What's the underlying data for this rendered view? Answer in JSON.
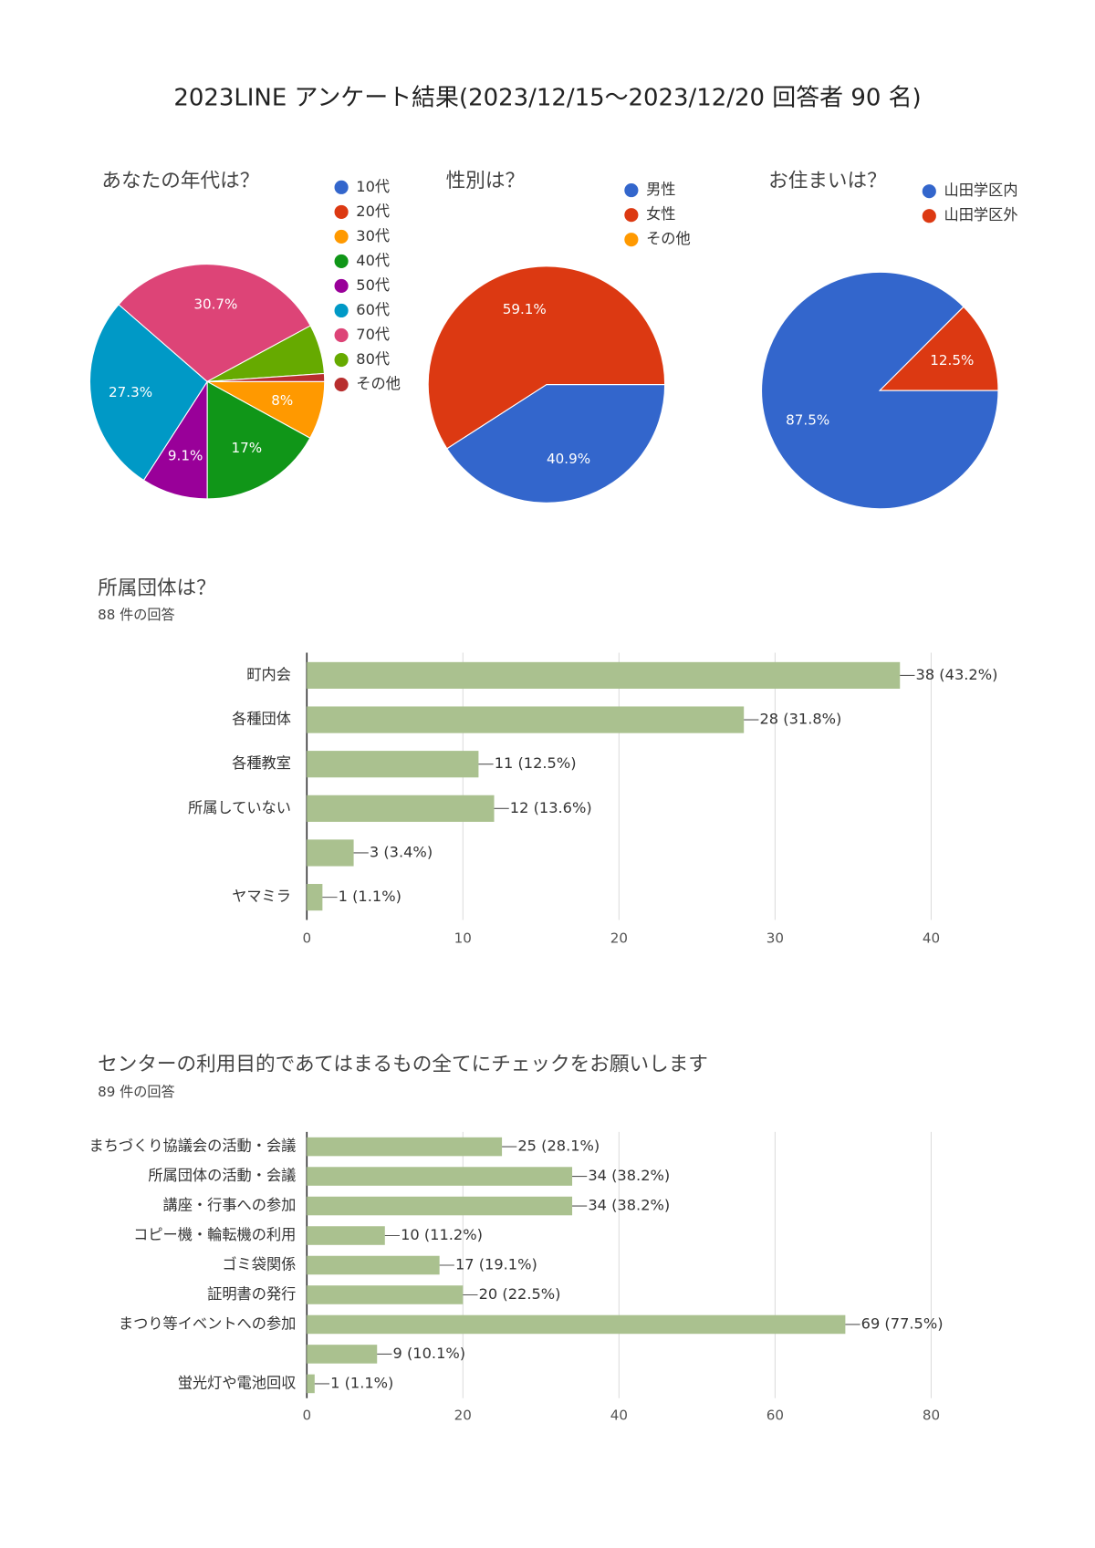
{
  "title": "2023LINE アンケート結果(2023/12/15～2023/12/20 回答者 90 名)",
  "chart_data": [
    {
      "type": "pie",
      "title": "あなたの年代は？",
      "categories": [
        "10代",
        "20代",
        "30代",
        "40代",
        "50代",
        "60代",
        "70代",
        "80代",
        "その他"
      ],
      "values": [
        0,
        0,
        8,
        17,
        9.1,
        27.3,
        30.7,
        6.8,
        1.1
      ],
      "value_labels": [
        null,
        null,
        "8%",
        "17%",
        "9.1%",
        "27.3%",
        "30.7%",
        null,
        null
      ],
      "colors": [
        "#3366cc",
        "#dc3912",
        "#ff9900",
        "#109618",
        "#990099",
        "#0099c6",
        "#dd4477",
        "#66aa00",
        "#b82e2e"
      ]
    },
    {
      "type": "pie",
      "title": "性別は？",
      "categories": [
        "男性",
        "女性",
        "その他"
      ],
      "values": [
        40.9,
        59.1,
        0
      ],
      "value_labels": [
        "40.9%",
        "59.1%",
        null
      ],
      "colors": [
        "#3366cc",
        "#dc3912",
        "#ff9900"
      ]
    },
    {
      "type": "pie",
      "title": "お住まいは？",
      "categories": [
        "山田学区内",
        "山田学区外"
      ],
      "values": [
        87.5,
        12.5
      ],
      "value_labels": [
        "87.5%",
        "12.5%"
      ],
      "colors": [
        "#3366cc",
        "#dc3912"
      ]
    },
    {
      "type": "bar",
      "title": "所属団体は？",
      "subtitle": "88 件の回答",
      "categories": [
        "町内会",
        "各種団体",
        "各種教室",
        "所属していない",
        null,
        "ヤマミラ"
      ],
      "values": [
        38,
        28,
        11,
        12,
        3,
        1
      ],
      "value_labels": [
        "38 (43.2%)",
        "28 (31.8%)",
        "11 (12.5%)",
        "12 (13.6%)",
        "3 (3.4%)",
        "1 (1.1%)"
      ],
      "color": "#aac18f",
      "xlim": [
        0,
        40
      ],
      "xticks": [
        0,
        10,
        20,
        30,
        40
      ],
      "grid": true
    },
    {
      "type": "bar",
      "title": "センターの利用目的であてはまるもの全てにチェックをお願いします",
      "subtitle": "89 件の回答",
      "categories": [
        "まちづくり協議会の活動・会議",
        "所属団体の活動・会議",
        "講座・行事への参加",
        "コピー機・輪転機の利用",
        "ゴミ袋関係",
        "証明書の発行",
        "まつり等イベントへの参加",
        null,
        "蛍光灯や電池回収"
      ],
      "values": [
        25,
        34,
        34,
        10,
        17,
        20,
        69,
        9,
        1
      ],
      "value_labels": [
        "25 (28.1%)",
        "34 (38.2%)",
        "34 (38.2%)",
        "10 (11.2%)",
        "17 (19.1%)",
        "20 (22.5%)",
        "69 (77.5%)",
        "9 (10.1%)",
        "1 (1.1%)"
      ],
      "color": "#aac18f",
      "xlim": [
        0,
        80
      ],
      "xticks": [
        0,
        20,
        40,
        60,
        80
      ],
      "grid": true
    }
  ]
}
